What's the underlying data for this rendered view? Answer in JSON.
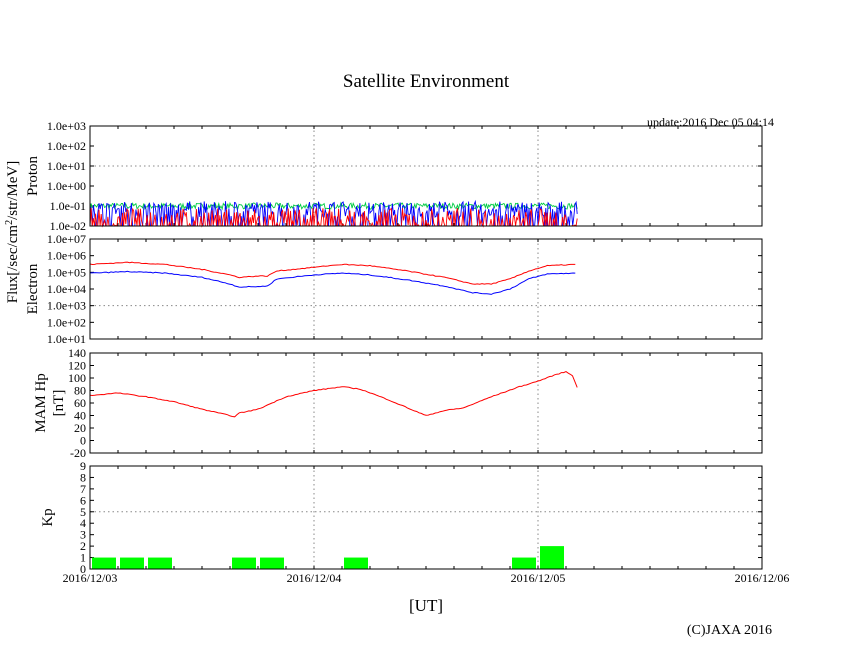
{
  "title": "Satellite Environment",
  "update": "update:2016 Dec 05 04:14",
  "copyright": "(C)JAXA 2016",
  "xlabel": "[UT]",
  "flux_ylabel": "Flux[/sec/cm2/str/MeV]",
  "chart_data": [
    {
      "type": "line",
      "name": "proton",
      "ylabel": "Proton",
      "yscale": "log",
      "ylim": [
        0.01,
        1000
      ],
      "yticks": [
        "1.0e-02",
        "1.0e-01",
        "1.0e+00",
        "1.0e+01",
        "1.0e+02",
        "1.0e+03"
      ],
      "grid_y": [
        10
      ],
      "x_hours_range": [
        0,
        72
      ],
      "data_end_hour": 52.2,
      "series": [
        {
          "name": "green",
          "color": "#00cc44",
          "typical": 0.1,
          "spread": 0.3
        },
        {
          "name": "blue",
          "color": "#0000ff",
          "typical": 0.07,
          "spread": 0.8
        },
        {
          "name": "red",
          "color": "#ff0000",
          "typical": 0.02,
          "spread": 1.2
        }
      ]
    },
    {
      "type": "line",
      "name": "electron",
      "ylabel": "Electron",
      "yscale": "log",
      "ylim": [
        10,
        10000000
      ],
      "yticks": [
        "1.0e+01",
        "1.0e+02",
        "1.0e+03",
        "1.0e+04",
        "1.0e+05",
        "1.0e+06",
        "1.0e+07"
      ],
      "grid_y": [
        1000
      ],
      "series": [
        {
          "name": "red",
          "color": "#ff0000",
          "points": [
            [
              0,
              300000
            ],
            [
              4,
              400000
            ],
            [
              8,
              300000
            ],
            [
              12,
              150000
            ],
            [
              15,
              70000
            ],
            [
              16,
              50000
            ],
            [
              18,
              60000
            ],
            [
              19,
              60000
            ],
            [
              20,
              120000
            ],
            [
              24,
              200000
            ],
            [
              27,
              300000
            ],
            [
              30,
              250000
            ],
            [
              34,
              120000
            ],
            [
              38,
              50000
            ],
            [
              41,
              20000
            ],
            [
              43,
              20000
            ],
            [
              45,
              40000
            ],
            [
              47,
              120000
            ],
            [
              49,
              250000
            ],
            [
              52,
              300000
            ]
          ]
        },
        {
          "name": "blue",
          "color": "#0000ff",
          "points": [
            [
              0,
              90000
            ],
            [
              4,
              110000
            ],
            [
              8,
              90000
            ],
            [
              12,
              50000
            ],
            [
              15,
              20000
            ],
            [
              16,
              13000
            ],
            [
              18,
              14000
            ],
            [
              19,
              15000
            ],
            [
              20,
              40000
            ],
            [
              24,
              70000
            ],
            [
              27,
              90000
            ],
            [
              30,
              70000
            ],
            [
              34,
              35000
            ],
            [
              38,
              15000
            ],
            [
              41,
              6000
            ],
            [
              43,
              5000
            ],
            [
              45,
              10000
            ],
            [
              47,
              40000
            ],
            [
              49,
              80000
            ],
            [
              52,
              90000
            ]
          ]
        }
      ]
    },
    {
      "type": "line",
      "name": "mam_hp",
      "ylabel": "MAM Hp",
      "yunit": "[nT]",
      "ylim": [
        -20,
        140
      ],
      "yticks": [
        "-20",
        "0",
        "20",
        "40",
        "60",
        "80",
        "100",
        "120",
        "140"
      ],
      "series": [
        {
          "name": "Hp",
          "color": "#ff0000",
          "points": [
            [
              0,
              72
            ],
            [
              3,
              76
            ],
            [
              6,
              70
            ],
            [
              9,
              62
            ],
            [
              12,
              50
            ],
            [
              15,
              40
            ],
            [
              15.5,
              38
            ],
            [
              16,
              44
            ],
            [
              18,
              50
            ],
            [
              21,
              70
            ],
            [
              24,
              80
            ],
            [
              27,
              86
            ],
            [
              29,
              82
            ],
            [
              32,
              65
            ],
            [
              35,
              46
            ],
            [
              36,
              40
            ],
            [
              38,
              48
            ],
            [
              40,
              52
            ],
            [
              43,
              70
            ],
            [
              46,
              86
            ],
            [
              48,
              95
            ],
            [
              50,
              106
            ],
            [
              51,
              110
            ],
            [
              51.7,
              104
            ],
            [
              52.2,
              85
            ]
          ]
        }
      ]
    },
    {
      "type": "bar",
      "name": "kp",
      "ylabel": "Kp",
      "ylim": [
        0,
        9
      ],
      "yticks": [
        "0",
        "1",
        "2",
        "3",
        "4",
        "5",
        "6",
        "7",
        "8",
        "9"
      ],
      "grid_y": [
        5
      ],
      "color": "#00ff00",
      "interval_hours": 3,
      "values": [
        1,
        1,
        1,
        0,
        0,
        1,
        1,
        0,
        0,
        1,
        0,
        0,
        0,
        0,
        0,
        1,
        2
      ]
    }
  ],
  "xticks": [
    "2016/12/03",
    "2016/12/04",
    "2016/12/05",
    "2016/12/06"
  ]
}
